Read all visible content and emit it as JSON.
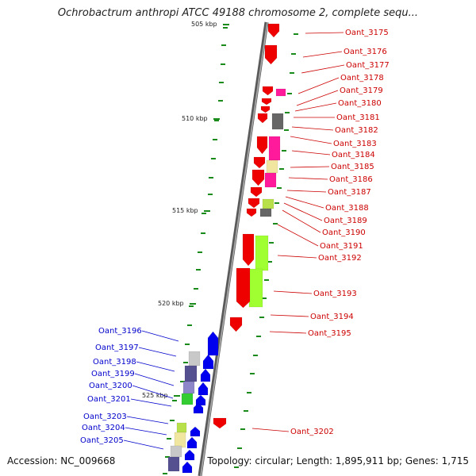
{
  "title": "Ochrobactrum anthropi ATCC 49188 chromosome 2, complete sequ...",
  "footer": {
    "accession": "Accession: NC_009668",
    "summary": "Topology: circular; Length: 1,895,911 bp; Genes: 1,715"
  },
  "colors": {
    "backbone": "#808080",
    "forward_label": "#cc0000",
    "reverse_label": "#0000cc",
    "tick": "#1a8a1a",
    "forward_gene": "#ee0000",
    "reverse_gene": "#0000ee"
  },
  "scale_labels": [
    "505 kbp",
    "510 kbp",
    "515 kbp",
    "520 kbp",
    "525 kbp"
  ],
  "forward_labels": [
    "Oant_3175",
    "Oant_3176",
    "Oant_3177",
    "Oant_3178",
    "Oant_3179",
    "Oant_3180",
    "Oant_3181",
    "Oant_3182",
    "Oant_3183",
    "Oant_3184",
    "Oant_3185",
    "Oant_3186",
    "Oant_3187",
    "Oant_3188",
    "Oant_3189",
    "Oant_3190",
    "Oant_3191",
    "Oant_3192",
    "Oant_3193",
    "Oant_3194",
    "Oant_3195",
    "Oant_3202"
  ],
  "reverse_labels": [
    "Oant_3196",
    "Oant_3197",
    "Oant_3198",
    "Oant_3199",
    "Oant_3200",
    "Oant_3201",
    "Oant_3203",
    "Oant_3204",
    "Oant_3205"
  ]
}
